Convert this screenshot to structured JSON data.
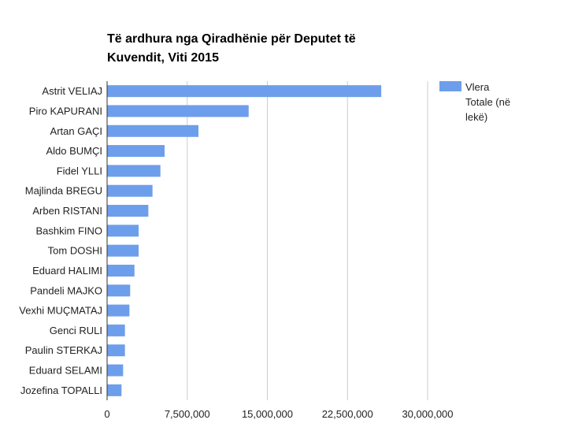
{
  "chart_data": {
    "type": "bar",
    "orientation": "horizontal",
    "title": "Të ardhura nga Qiradhënie për Deputet të Kuvendit, Viti 2015",
    "title_lines": [
      "Të ardhura nga Qiradhënie për Deputet të",
      "Kuvendit, Viti 2015"
    ],
    "categories": [
      "Astrit VELIAJ",
      "Piro KAPURANI",
      "Artan GAÇI",
      "Aldo BUMÇI",
      "Fidel YLLI",
      "Majlinda BREGU",
      "Arben RISTANI",
      "Bashkim FINO",
      "Tom DOSHI",
      "Eduard HALIMI",
      "Pandeli MAJKO",
      "Vexhi MUÇMATAJ",
      "Genci RULI",
      "Paulin STERKAJ",
      "Eduard SELAMI",
      "Jozefina TOPALLI"
    ],
    "series": [
      {
        "name": "Vlera Totale (në lekë)",
        "values": [
          25660000,
          13250000,
          8550000,
          5380000,
          4990000,
          4250000,
          3860000,
          2950000,
          2950000,
          2560000,
          2160000,
          2090000,
          1670000,
          1670000,
          1500000,
          1350000
        ]
      }
    ],
    "legend_lines": [
      "Vlera",
      "Totale (në",
      "lekë)"
    ],
    "xlim": [
      0,
      30000000
    ],
    "xticks": [
      0,
      7500000,
      15000000,
      22500000,
      30000000
    ],
    "xtick_labels": [
      "0",
      "7,500,000",
      "15,000,000",
      "22,500,000",
      "30,000,000"
    ],
    "grid": true,
    "legend_position": "right",
    "colors": {
      "bar": "#6d9eeb",
      "grid": "#cccccc",
      "axis": "#333333",
      "text": "#222222"
    }
  }
}
